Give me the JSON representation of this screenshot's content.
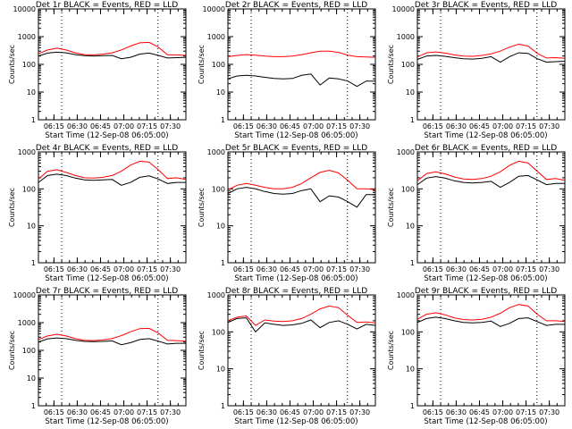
{
  "chart_data": [
    {
      "type": "line",
      "title": "Det 1r BLACK = Events, RED = LLD",
      "xlabel": "Start Time (12-Sep-08 06:05:00)",
      "ylabel": "Counts/sec",
      "yscale": "log",
      "ylim": [
        1,
        10000
      ],
      "xlim": [
        "06:05",
        "07:40"
      ],
      "yticks": [
        "1",
        "10",
        "100",
        "1000",
        "10000"
      ],
      "xticks": [
        "06:15",
        "06:30",
        "06:45",
        "07:00",
        "07:15",
        "07:30"
      ],
      "vlines": [
        "06:20",
        "07:22"
      ],
      "series": [
        {
          "color": "#000000",
          "values": [
            200,
            255,
            275,
            260,
            225,
            205,
            200,
            205,
            210,
            160,
            180,
            235,
            255,
            210,
            170,
            175,
            180
          ]
        },
        {
          "color": "#ff0000",
          "values": [
            240,
            330,
            385,
            330,
            260,
            225,
            220,
            235,
            260,
            330,
            460,
            600,
            620,
            420,
            220,
            220,
            210
          ]
        }
      ]
    },
    {
      "type": "line",
      "title": "Det 2r BLACK = Events, RED = LLD",
      "xlabel": "Start Time (12-Sep-08 06:05:00)",
      "ylabel": "Counts/sec",
      "yscale": "log",
      "ylim": [
        1,
        10000
      ],
      "xlim": [
        "06:05",
        "07:40"
      ],
      "yticks": [
        "1",
        "10",
        "100",
        "1000",
        "10000"
      ],
      "xticks": [
        "06:15",
        "06:30",
        "06:45",
        "07:00",
        "07:15",
        "07:30"
      ],
      "vlines": [
        "06:20",
        "07:22"
      ],
      "series": [
        {
          "color": "#000000",
          "values": [
            30,
            38,
            40,
            38,
            34,
            31,
            30,
            31,
            40,
            45,
            18,
            32,
            30,
            25,
            16,
            25,
            25
          ]
        },
        {
          "color": "#ff0000",
          "values": [
            190,
            210,
            225,
            215,
            200,
            190,
            190,
            200,
            225,
            260,
            300,
            300,
            270,
            215,
            190,
            185,
            180
          ]
        }
      ]
    },
    {
      "type": "line",
      "title": "Det 3r BLACK = Events, RED = LLD",
      "xlabel": "Start Time (12-Sep-08 06:05:00)",
      "ylabel": "Counts/sec",
      "yscale": "log",
      "ylim": [
        1,
        10000
      ],
      "xlim": [
        "06:05",
        "07:40"
      ],
      "yticks": [
        "1",
        "10",
        "100",
        "1000",
        "10000"
      ],
      "xticks": [
        "06:15",
        "06:30",
        "06:45",
        "07:00",
        "07:15",
        "07:30"
      ],
      "vlines": [
        "06:20",
        "07:22"
      ],
      "series": [
        {
          "color": "#000000",
          "values": [
            150,
            200,
            210,
            195,
            175,
            160,
            155,
            165,
            190,
            120,
            190,
            260,
            250,
            160,
            120,
            125,
            130
          ]
        },
        {
          "color": "#ff0000",
          "values": [
            185,
            260,
            280,
            255,
            220,
            200,
            195,
            210,
            240,
            300,
            420,
            530,
            460,
            250,
            170,
            175,
            165
          ]
        }
      ]
    },
    {
      "type": "line",
      "title": "Det 4r BLACK = Events, RED = LLD",
      "xlabel": "Start Time (12-Sep-08 06:05:00)",
      "ylabel": "Counts/sec",
      "yscale": "log",
      "ylim": [
        1,
        1000
      ],
      "xlim": [
        "06:05",
        "07:40"
      ],
      "yticks": [
        "1",
        "10",
        "100",
        "1000"
      ],
      "xticks": [
        "06:15",
        "06:30",
        "06:45",
        "07:00",
        "07:15",
        "07:30"
      ],
      "vlines": [
        "06:20",
        "07:22"
      ],
      "series": [
        {
          "color": "#000000",
          "values": [
            150,
            230,
            250,
            230,
            195,
            175,
            170,
            175,
            180,
            125,
            150,
            205,
            225,
            185,
            140,
            150,
            150
          ]
        },
        {
          "color": "#ff0000",
          "values": [
            185,
            300,
            330,
            280,
            230,
            200,
            195,
            205,
            230,
            300,
            440,
            560,
            530,
            330,
            190,
            200,
            180
          ]
        }
      ]
    },
    {
      "type": "line",
      "title": "Det 5r BLACK = Events, RED = LLD",
      "xlabel": "Start Time (12-Sep-08 06:05:00)",
      "ylabel": "Counts/sec",
      "yscale": "log",
      "ylim": [
        1,
        1000
      ],
      "xlim": [
        "06:05",
        "07:40"
      ],
      "yticks": [
        "1",
        "10",
        "100",
        "1000"
      ],
      "xticks": [
        "06:15",
        "06:30",
        "06:45",
        "07:00",
        "07:15",
        "07:30"
      ],
      "vlines": [
        "06:20",
        "07:22"
      ],
      "series": [
        {
          "color": "#000000",
          "values": [
            75,
            100,
            110,
            100,
            85,
            75,
            72,
            75,
            90,
            100,
            45,
            65,
            60,
            45,
            32,
            70,
            70
          ]
        },
        {
          "color": "#ff0000",
          "values": [
            95,
            125,
            140,
            125,
            110,
            100,
            100,
            110,
            140,
            200,
            280,
            320,
            270,
            170,
            100,
            100,
            95
          ]
        }
      ]
    },
    {
      "type": "line",
      "title": "Det 6r BLACK = Events, RED = LLD",
      "xlabel": "Start Time (12-Sep-08 06:05:00)",
      "ylabel": "Counts/sec",
      "yscale": "log",
      "ylim": [
        1,
        1000
      ],
      "xlim": [
        "06:05",
        "07:40"
      ],
      "yticks": [
        "1",
        "10",
        "100",
        "1000"
      ],
      "xticks": [
        "06:15",
        "06:30",
        "06:45",
        "07:00",
        "07:15",
        "07:30"
      ],
      "vlines": [
        "06:20",
        "07:22"
      ],
      "series": [
        {
          "color": "#000000",
          "values": [
            130,
            195,
            215,
            195,
            165,
            150,
            145,
            150,
            160,
            110,
            150,
            220,
            230,
            175,
            130,
            140,
            140
          ]
        },
        {
          "color": "#ff0000",
          "values": [
            165,
            260,
            290,
            255,
            210,
            185,
            180,
            190,
            220,
            290,
            430,
            560,
            500,
            300,
            180,
            190,
            170
          ]
        }
      ]
    },
    {
      "type": "line",
      "title": "Det 7r BLACK = Events, RED = LLD",
      "xlabel": "Start Time (12-Sep-08 06:05:00)",
      "ylabel": "Counts/sec",
      "yscale": "log",
      "ylim": [
        1,
        10000
      ],
      "xlim": [
        "06:05",
        "07:40"
      ],
      "yticks": [
        "1",
        "10",
        "100",
        "1000",
        "10000"
      ],
      "xticks": [
        "06:15",
        "06:30",
        "06:45",
        "07:00",
        "07:15",
        "07:30"
      ],
      "vlines": [
        "06:20",
        "07:22"
      ],
      "series": [
        {
          "color": "#000000",
          "values": [
            200,
            260,
            280,
            265,
            230,
            210,
            205,
            210,
            220,
            160,
            190,
            245,
            265,
            215,
            170,
            180,
            180
          ]
        },
        {
          "color": "#ff0000",
          "values": [
            245,
            330,
            380,
            330,
            265,
            230,
            225,
            240,
            265,
            340,
            470,
            610,
            620,
            420,
            230,
            225,
            215
          ]
        }
      ]
    },
    {
      "type": "line",
      "title": "Det 8r BLACK = Events, RED = LLD",
      "xlabel": "Start Time (12-Sep-08 06:05:00)",
      "ylabel": "Counts/sec",
      "yscale": "log",
      "ylim": [
        1,
        1000
      ],
      "xlim": [
        "06:05",
        "07:40"
      ],
      "yticks": [
        "1",
        "10",
        "100",
        "1000"
      ],
      "xticks": [
        "06:15",
        "06:30",
        "06:45",
        "07:00",
        "07:15",
        "07:30"
      ],
      "vlines": [
        "06:20",
        "07:22"
      ],
      "series": [
        {
          "color": "#000000",
          "values": [
            180,
            230,
            240,
            100,
            175,
            160,
            150,
            155,
            170,
            210,
            130,
            180,
            200,
            160,
            120,
            160,
            150
          ]
        },
        {
          "color": "#ff0000",
          "values": [
            200,
            250,
            270,
            150,
            210,
            195,
            190,
            200,
            230,
            300,
            420,
            500,
            450,
            280,
            180,
            185,
            175
          ]
        }
      ]
    },
    {
      "type": "line",
      "title": "Det 9r BLACK = Events, RED = LLD",
      "xlabel": "Start Time (12-Sep-08 06:05:00)",
      "ylabel": "Counts/sec",
      "yscale": "log",
      "ylim": [
        1,
        1000
      ],
      "xlim": [
        "06:05",
        "07:40"
      ],
      "yticks": [
        "1",
        "10",
        "100",
        "1000"
      ],
      "xticks": [
        "06:15",
        "06:30",
        "06:45",
        "07:00",
        "07:15",
        "07:30"
      ],
      "vlines": [
        "06:20",
        "07:22"
      ],
      "series": [
        {
          "color": "#000000",
          "values": [
            180,
            230,
            250,
            230,
            200,
            180,
            175,
            180,
            195,
            140,
            170,
            230,
            240,
            190,
            150,
            160,
            160
          ]
        },
        {
          "color": "#ff0000",
          "values": [
            220,
            300,
            330,
            290,
            240,
            215,
            210,
            220,
            250,
            320,
            450,
            550,
            500,
            300,
            200,
            200,
            190
          ]
        }
      ]
    }
  ]
}
